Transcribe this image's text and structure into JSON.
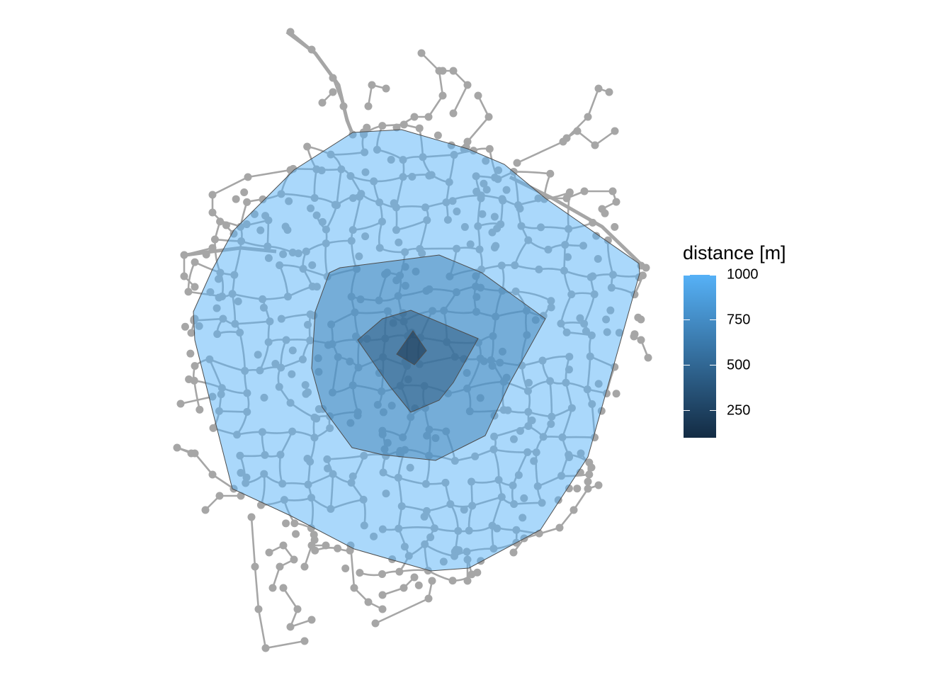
{
  "legend": {
    "title": "distance [m]",
    "color_low": "#132b43",
    "color_high": "#56b1f7",
    "scale_min": 100,
    "scale_max": 1000,
    "ticks": [
      {
        "value": 1000,
        "label": "1000"
      },
      {
        "value": 750,
        "label": "750"
      },
      {
        "value": 500,
        "label": "500"
      },
      {
        "value": 250,
        "label": "250"
      }
    ]
  },
  "map": {
    "network_color": "#a6a6a6",
    "isochrone_outline_color": "#4d4d4d",
    "isochrones": [
      {
        "distance": 1000,
        "fill": "#56b1f7"
      },
      {
        "distance": 700,
        "fill": "#3f81b5"
      },
      {
        "distance": 400,
        "fill": "#29557a"
      },
      {
        "distance": 100,
        "fill": "#132b43"
      }
    ]
  }
}
